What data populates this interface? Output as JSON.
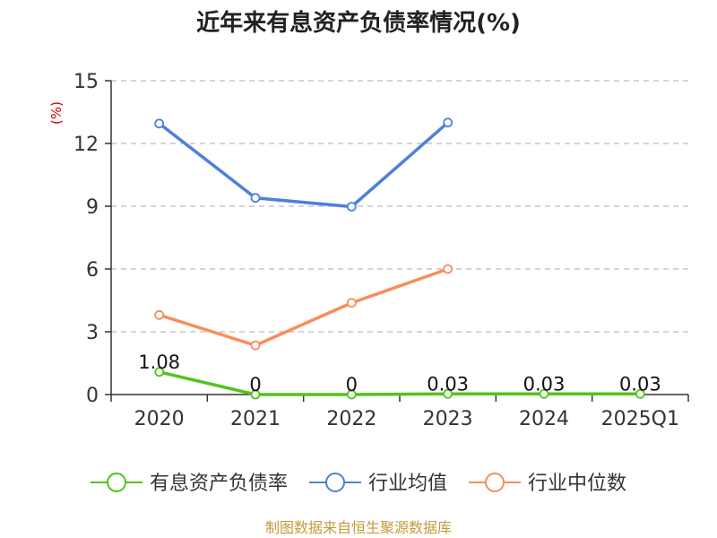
{
  "chart_data": {
    "type": "line",
    "title": "近年来有息资产负债率情况(%)",
    "unit_label": "(%)",
    "unit_color": "#cc0000",
    "categories": [
      "2020",
      "2021",
      "2022",
      "2023",
      "2024",
      "2025Q1"
    ],
    "ylim": [
      0,
      15
    ],
    "yticks": [
      0,
      3,
      6,
      9,
      12,
      15
    ],
    "grid": true,
    "legend_position": "bottom",
    "series": [
      {
        "name": "有息资产负债率",
        "color": "#52c41a",
        "values": [
          1.08,
          0,
          0,
          0.03,
          0.03,
          0.03
        ],
        "labels": [
          "1.08",
          "0",
          "0",
          "0.03",
          "0.03",
          "0.03"
        ]
      },
      {
        "name": "行业均值",
        "color": "#4f7fdc",
        "values": [
          12.95,
          9.4,
          8.98,
          13.0,
          null,
          null
        ]
      },
      {
        "name": "行业中位数",
        "color": "#f98d5a",
        "values": [
          3.8,
          2.35,
          4.38,
          6.0,
          null,
          null
        ]
      }
    ],
    "source": "制图数据来自恒生聚源数据库",
    "source_color": "#c49a3c"
  }
}
